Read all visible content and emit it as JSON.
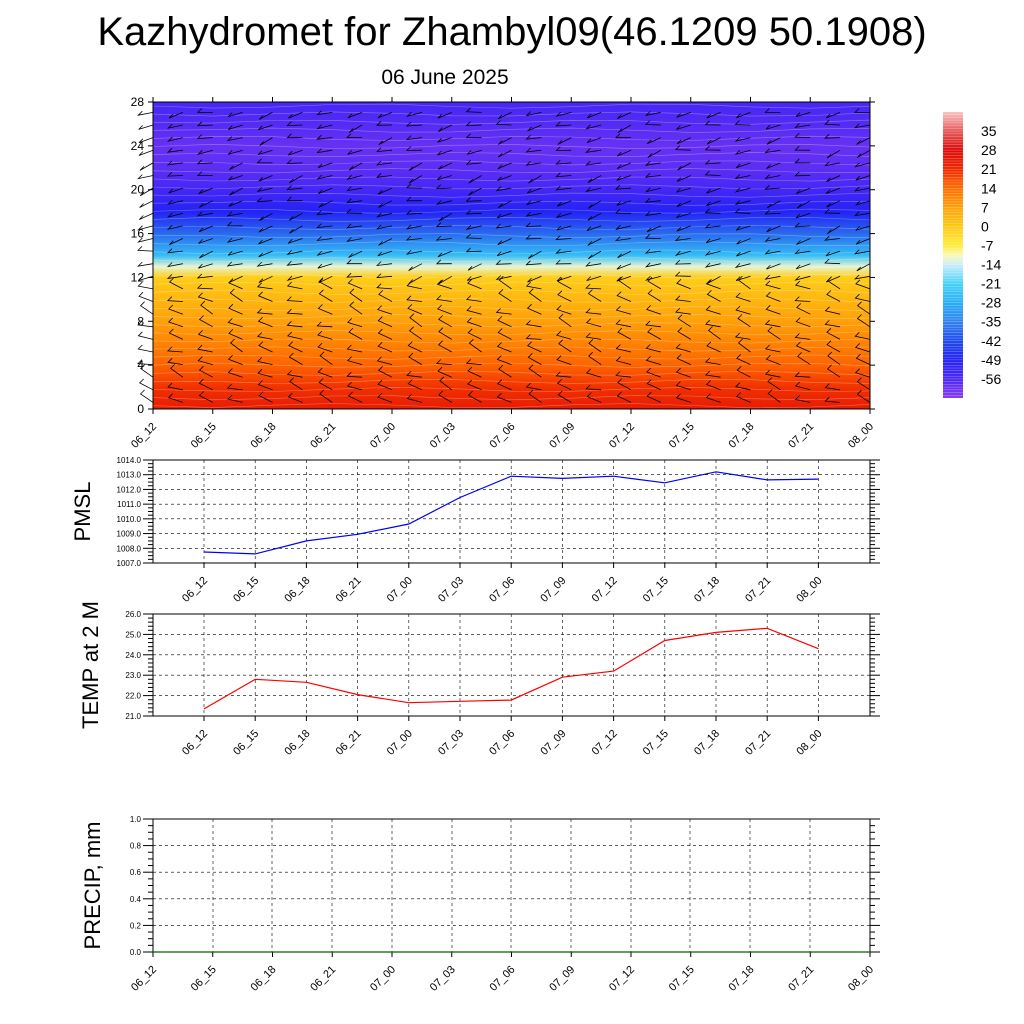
{
  "header": {
    "title": "Kazhydromet for Zhambyl09(46.1209 50.1908)",
    "date": "06 June 2025"
  },
  "chart_data": [
    {
      "type": "heatmap",
      "title": "",
      "xlabel": "",
      "ylabel": "",
      "x_ticks": [
        "06_12",
        "06_15",
        "06_18",
        "06_21",
        "07_00",
        "07_03",
        "07_06",
        "07_09",
        "07_12",
        "07_15",
        "07_18",
        "07_21",
        "08_00"
      ],
      "y_ticks": [
        "0",
        "4",
        "8",
        "12",
        "16",
        "20",
        "24",
        "28"
      ],
      "ylim": [
        0,
        28
      ],
      "colorbar": {
        "labels": [
          "35",
          "28",
          "21",
          "14",
          "7",
          "0",
          "-7",
          "-14",
          "-21",
          "-28",
          "-35",
          "-42",
          "-49",
          "-56"
        ],
        "range": [
          -63,
          42
        ]
      },
      "levels": [
        0,
        2,
        4,
        6,
        8,
        10,
        12,
        13,
        14,
        16,
        18,
        20,
        22,
        24,
        26,
        28
      ],
      "temperature_by_level": [
        24,
        20,
        15,
        11,
        7,
        3,
        -1,
        -12,
        -25,
        -38,
        -49,
        -55,
        -58,
        -59,
        -57,
        -55
      ],
      "wind_barbs": true
    },
    {
      "type": "line",
      "ylabel": "PMSL",
      "x": [
        "06_12",
        "06_15",
        "06_18",
        "06_21",
        "07_00",
        "07_03",
        "07_06",
        "07_09",
        "07_12",
        "07_15",
        "07_18",
        "07_21",
        "08_00"
      ],
      "ylim": [
        1007.0,
        1014.0
      ],
      "y_ticks": [
        "1007.0",
        "1008.0",
        "1009.0",
        "1010.0",
        "1011.0",
        "1012.0",
        "1013.0",
        "1014.0"
      ],
      "series": [
        {
          "color": "#0000ff",
          "values": [
            1007.75,
            1007.62,
            1008.5,
            1008.95,
            1009.65,
            1011.45,
            1012.9,
            1012.75,
            1012.9,
            1012.45,
            1013.2,
            1012.65,
            1012.7
          ]
        }
      ]
    },
    {
      "type": "line",
      "ylabel": "TEMP at 2 M",
      "x": [
        "06_12",
        "06_15",
        "06_18",
        "06_21",
        "07_00",
        "07_03",
        "07_06",
        "07_09",
        "07_12",
        "07_15",
        "07_18",
        "07_21",
        "08_00"
      ],
      "ylim": [
        21.0,
        26.0
      ],
      "y_ticks": [
        "21.0",
        "22.0",
        "23.0",
        "24.0",
        "25.0",
        "26.0"
      ],
      "series": [
        {
          "color": "#ff0000",
          "values": [
            21.35,
            22.8,
            22.65,
            22.05,
            21.65,
            21.72,
            21.78,
            22.9,
            23.2,
            24.7,
            25.1,
            25.3,
            24.3
          ]
        }
      ]
    },
    {
      "type": "line",
      "ylabel": "PRECIP, mm",
      "x": [
        "06_12",
        "06_15",
        "06_18",
        "06_21",
        "07_00",
        "07_03",
        "07_06",
        "07_09",
        "07_12",
        "07_15",
        "07_18",
        "07_21",
        "08_00"
      ],
      "ylim": [
        0.0,
        1.0
      ],
      "y_ticks": [
        "0.0",
        "0.2",
        "0.4",
        "0.6",
        "0.8",
        "1.0"
      ],
      "series": [
        {
          "color": "#006400",
          "values": [
            0,
            0,
            0,
            0,
            0,
            0,
            0,
            0,
            0,
            0,
            0,
            0,
            0
          ]
        }
      ]
    }
  ]
}
